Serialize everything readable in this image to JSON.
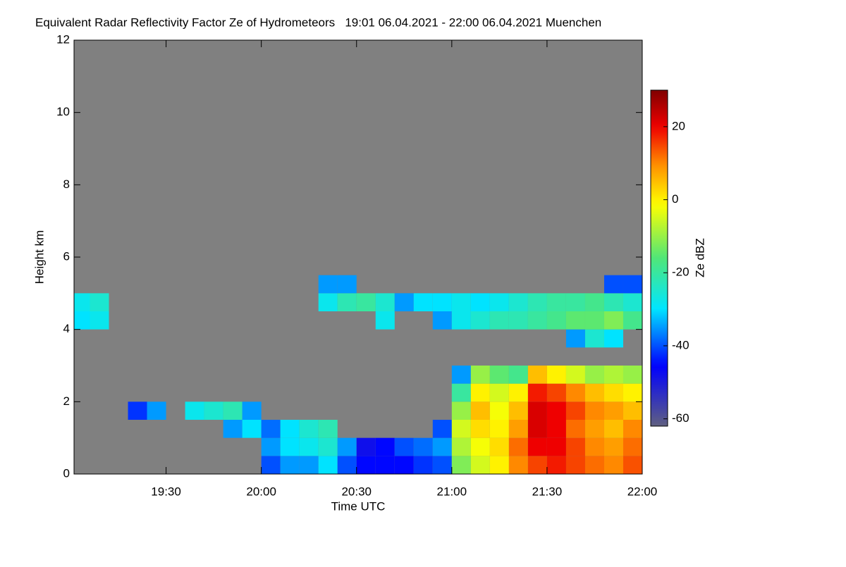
{
  "chart_data": {
    "type": "heatmap",
    "title": "Equivalent Radar Reflectivity Factor Ze of Hydrometeors   19:01 06.04.2021 - 22:00 06.04.2021 Muenchen",
    "xlabel": "Time UTC",
    "ylabel": "Height km",
    "colorbar_label": "Ze dBZ",
    "background_color": "#808080",
    "xlim": [
      19.0167,
      22.0
    ],
    "xticks": [
      {
        "value": 19.5,
        "label": "19:30"
      },
      {
        "value": 20.0,
        "label": "20:00"
      },
      {
        "value": 20.5,
        "label": "20:30"
      },
      {
        "value": 21.0,
        "label": "21:00"
      },
      {
        "value": 21.5,
        "label": "21:30"
      },
      {
        "value": 22.0,
        "label": "22:00"
      }
    ],
    "ylim": [
      0,
      12
    ],
    "yticks": [
      0,
      2,
      4,
      6,
      8,
      10,
      12
    ],
    "zlim": [
      -62,
      30
    ],
    "zticks": [
      20,
      0,
      -20,
      -40,
      -60
    ],
    "x": [
      19.05,
      19.15,
      19.25,
      19.35,
      19.45,
      19.55,
      19.65,
      19.75,
      19.85,
      19.95,
      20.05,
      20.15,
      20.25,
      20.35,
      20.45,
      20.55,
      20.65,
      20.75,
      20.85,
      20.95,
      21.05,
      21.15,
      21.25,
      21.35,
      21.45,
      21.55,
      21.65,
      21.75,
      21.85,
      21.95
    ],
    "y": [
      0.25,
      0.75,
      1.25,
      1.75,
      2.25,
      2.75,
      3.25,
      3.75,
      4.25,
      4.75,
      5.25
    ],
    "z": [
      [
        null,
        null,
        null,
        null,
        null,
        null,
        null,
        null,
        null,
        null,
        -40,
        -35,
        -35,
        -30,
        -40,
        -45,
        -45,
        -45,
        -42,
        -40,
        -12,
        -5,
        0,
        10,
        15,
        18,
        15,
        12,
        10,
        14
      ],
      [
        null,
        null,
        null,
        null,
        null,
        null,
        null,
        null,
        null,
        null,
        -35,
        -30,
        -28,
        -25,
        -35,
        -48,
        -45,
        -40,
        -38,
        -35,
        -8,
        -2,
        2,
        12,
        20,
        20,
        15,
        10,
        8,
        12
      ],
      [
        null,
        null,
        null,
        null,
        null,
        null,
        null,
        null,
        -35,
        -30,
        -38,
        -30,
        -25,
        -22,
        null,
        null,
        null,
        null,
        null,
        -40,
        -5,
        2,
        0,
        8,
        22,
        20,
        12,
        8,
        5,
        10
      ],
      [
        null,
        null,
        null,
        -42,
        -35,
        null,
        -28,
        -25,
        -22,
        -35,
        null,
        null,
        null,
        null,
        null,
        null,
        null,
        null,
        null,
        null,
        -10,
        5,
        -2,
        5,
        22,
        20,
        15,
        10,
        8,
        5
      ],
      [
        null,
        null,
        null,
        null,
        null,
        null,
        null,
        null,
        null,
        null,
        null,
        null,
        null,
        null,
        null,
        null,
        null,
        null,
        null,
        null,
        -20,
        0,
        -5,
        0,
        18,
        15,
        10,
        5,
        2,
        0
      ],
      [
        null,
        null,
        null,
        null,
        null,
        null,
        null,
        null,
        null,
        null,
        null,
        null,
        null,
        null,
        null,
        null,
        null,
        null,
        null,
        null,
        -35,
        -10,
        -15,
        -18,
        5,
        0,
        -5,
        -10,
        -8,
        -10
      ],
      [
        null,
        null,
        null,
        null,
        null,
        null,
        null,
        null,
        null,
        null,
        null,
        null,
        null,
        null,
        null,
        null,
        null,
        null,
        null,
        null,
        null,
        null,
        null,
        null,
        null,
        null,
        null,
        null,
        null,
        null
      ],
      [
        null,
        null,
        null,
        null,
        null,
        null,
        null,
        null,
        null,
        null,
        null,
        null,
        null,
        null,
        null,
        null,
        null,
        null,
        null,
        null,
        null,
        null,
        null,
        null,
        null,
        null,
        -35,
        -25,
        -30,
        null
      ],
      [
        -30,
        -28,
        null,
        null,
        null,
        null,
        null,
        null,
        null,
        null,
        null,
        null,
        null,
        null,
        null,
        null,
        -28,
        null,
        null,
        -35,
        -28,
        -25,
        -22,
        -22,
        -20,
        -18,
        -15,
        -15,
        -12,
        -18
      ],
      [
        -28,
        -25,
        null,
        null,
        null,
        null,
        null,
        null,
        null,
        null,
        null,
        null,
        null,
        -28,
        -22,
        -20,
        -25,
        -35,
        -30,
        -30,
        -28,
        -30,
        -28,
        -25,
        -22,
        -20,
        -20,
        -18,
        -22,
        -25
      ],
      [
        null,
        null,
        null,
        null,
        null,
        null,
        null,
        null,
        null,
        null,
        null,
        null,
        null,
        -35,
        -35,
        null,
        null,
        null,
        null,
        null,
        null,
        null,
        null,
        null,
        null,
        null,
        null,
        null,
        -40,
        -40
      ]
    ]
  }
}
